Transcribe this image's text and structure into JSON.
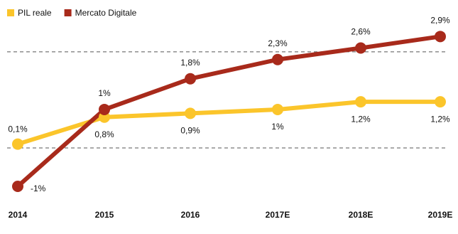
{
  "chart_data": {
    "type": "line",
    "categories": [
      "2014",
      "2015",
      "2016",
      "2017E",
      "2018E",
      "2019E"
    ],
    "series": [
      {
        "name": "PIL reale",
        "color": "#fbc52b",
        "values": [
          0.1,
          0.8,
          0.9,
          1,
          1.2,
          1.2
        ],
        "value_labels": [
          "0,1%",
          "0,8%",
          "0,9%",
          "1%",
          "1,2%",
          "1,2%"
        ]
      },
      {
        "name": "Mercato Digitale",
        "color": "#a82a1b",
        "values": [
          -1,
          1,
          1.8,
          2.3,
          2.6,
          2.9
        ],
        "value_labels": [
          "-1%",
          "1%",
          "1,8%",
          "2,3%",
          "2,6%",
          "2,9%"
        ]
      }
    ],
    "ylim": [
      -1.5,
      3.85
    ],
    "yticks": [
      0,
      2.5
    ],
    "grid": true
  }
}
